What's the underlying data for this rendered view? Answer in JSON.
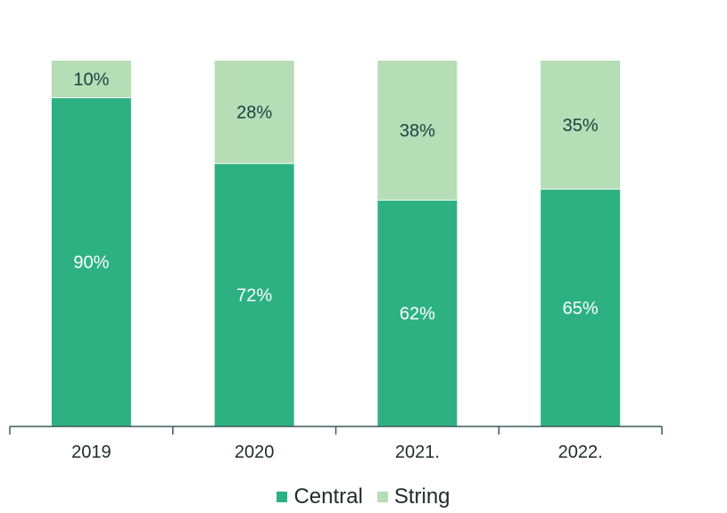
{
  "chart_data": {
    "type": "bar",
    "stacked": true,
    "categories": [
      "2019",
      "2020",
      "2021.",
      "2022."
    ],
    "series": [
      {
        "name": "Central",
        "values": [
          90,
          72,
          62,
          65
        ],
        "labels": [
          "90%",
          "72%",
          "62%",
          "65%"
        ],
        "color": "#2db183",
        "label_color": "#ffffff"
      },
      {
        "name": "String",
        "values": [
          10,
          28,
          38,
          35
        ],
        "labels": [
          "10%",
          "28%",
          "38%",
          "35%"
        ],
        "color": "#b5ddb6",
        "label_color": "#1e3f40"
      }
    ],
    "ylim": [
      0,
      100
    ],
    "grid": false,
    "legend": "bottom",
    "axis_color": "#3a5a5b"
  }
}
